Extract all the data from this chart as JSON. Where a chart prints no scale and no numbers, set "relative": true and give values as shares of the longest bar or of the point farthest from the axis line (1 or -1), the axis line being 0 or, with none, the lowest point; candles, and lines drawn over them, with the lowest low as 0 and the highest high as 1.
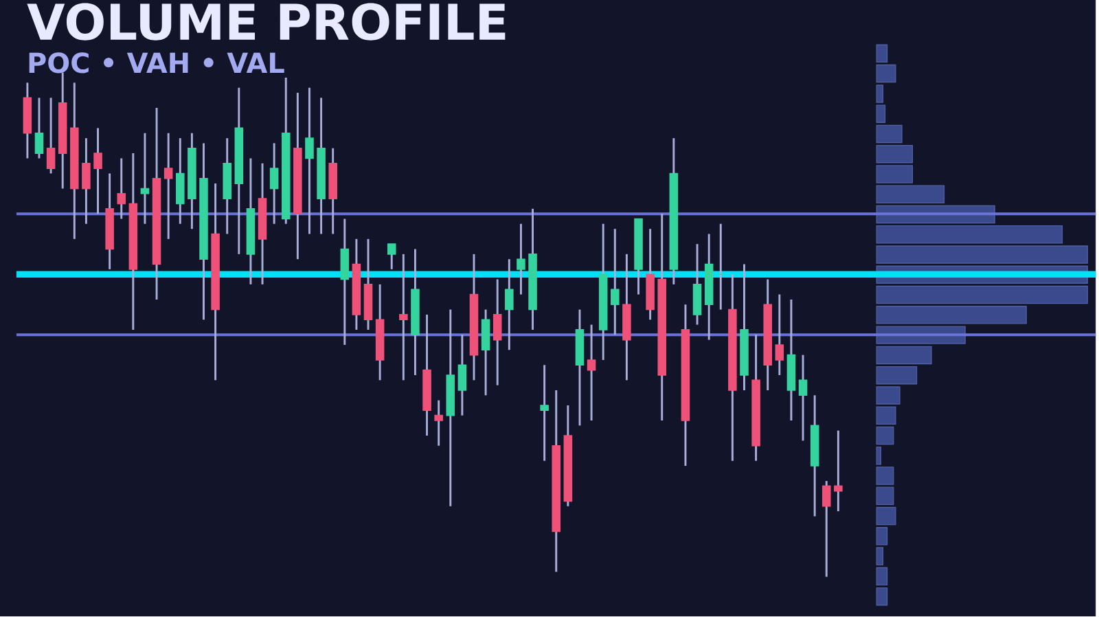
{
  "chart_data": [
    {
      "type": "candlestick",
      "title": "VOLUME PROFILE",
      "subtitle": "POC • VAH • VAL",
      "relative": true,
      "categories": [
        null,
        null,
        null,
        null,
        null,
        null,
        null,
        null,
        null,
        null,
        null,
        null,
        null,
        null,
        null,
        null,
        null,
        null,
        null,
        null,
        null,
        null,
        null,
        null,
        null,
        null,
        null,
        null,
        null,
        null,
        null,
        null,
        null,
        null,
        null,
        null,
        null,
        null,
        null,
        null,
        null,
        null,
        null,
        null,
        null,
        null,
        null,
        null,
        null,
        null,
        null,
        null,
        null,
        null,
        null,
        null,
        null,
        null,
        null,
        null,
        null,
        null,
        null,
        null,
        null,
        null,
        null,
        null,
        null,
        null
      ],
      "ohlc": [
        [
          0.95,
          0.98,
          0.83,
          0.88
        ],
        [
          0.84,
          0.95,
          0.83,
          0.88
        ],
        [
          0.85,
          0.95,
          0.8,
          0.81
        ],
        [
          0.94,
          1.0,
          0.77,
          0.84
        ],
        [
          0.89,
          0.98,
          0.67,
          0.77
        ],
        [
          0.82,
          0.87,
          0.7,
          0.77
        ],
        [
          0.84,
          0.89,
          0.72,
          0.81
        ],
        [
          0.73,
          0.8,
          0.61,
          0.65
        ],
        [
          0.76,
          0.83,
          0.71,
          0.74
        ],
        [
          0.74,
          0.84,
          0.49,
          0.61
        ],
        [
          0.76,
          0.88,
          0.7,
          0.77
        ],
        [
          0.79,
          0.93,
          0.55,
          0.62
        ],
        [
          0.81,
          0.88,
          0.67,
          0.79
        ],
        [
          0.74,
          0.87,
          0.7,
          0.8
        ],
        [
          0.75,
          0.88,
          0.69,
          0.85
        ],
        [
          0.63,
          0.86,
          0.51,
          0.79
        ],
        [
          0.68,
          0.78,
          0.39,
          0.53
        ],
        [
          0.75,
          0.87,
          0.68,
          0.82
        ],
        [
          0.78,
          0.97,
          0.64,
          0.89
        ],
        [
          0.64,
          0.83,
          0.58,
          0.73
        ],
        [
          0.75,
          0.82,
          0.58,
          0.67
        ],
        [
          0.77,
          0.86,
          0.7,
          0.81
        ],
        [
          0.71,
          0.99,
          0.7,
          0.88
        ],
        [
          0.85,
          0.96,
          0.63,
          0.72
        ],
        [
          0.83,
          0.97,
          0.68,
          0.87
        ],
        [
          0.75,
          0.95,
          0.68,
          0.85
        ],
        [
          0.82,
          0.85,
          0.68,
          0.75
        ],
        [
          0.59,
          0.71,
          0.46,
          0.65
        ],
        [
          0.62,
          0.67,
          0.49,
          0.52
        ],
        [
          0.58,
          0.67,
          0.49,
          0.51
        ],
        [
          0.51,
          0.58,
          0.39,
          0.43
        ],
        [
          0.64,
          0.66,
          0.61,
          0.66
        ],
        [
          0.52,
          0.64,
          0.39,
          0.51
        ],
        [
          0.48,
          0.65,
          0.4,
          0.57
        ],
        [
          0.41,
          0.52,
          0.28,
          0.33
        ],
        [
          0.32,
          0.35,
          0.26,
          0.31
        ],
        [
          0.32,
          0.53,
          0.14,
          0.4
        ],
        [
          0.37,
          0.48,
          0.32,
          0.42
        ],
        [
          0.56,
          0.64,
          0.39,
          0.44
        ],
        [
          0.45,
          0.53,
          0.36,
          0.51
        ],
        [
          0.52,
          0.59,
          0.38,
          0.47
        ],
        [
          0.53,
          0.63,
          0.45,
          0.57
        ],
        [
          0.61,
          0.7,
          0.56,
          0.63
        ],
        [
          0.53,
          0.73,
          0.49,
          0.64
        ],
        [
          0.33,
          0.42,
          0.23,
          0.34
        ],
        [
          0.26,
          0.37,
          0.01,
          0.09
        ],
        [
          0.28,
          0.34,
          0.14,
          0.15
        ],
        [
          0.42,
          0.53,
          0.3,
          0.49
        ],
        [
          0.43,
          0.5,
          0.31,
          0.41
        ],
        [
          0.49,
          0.7,
          0.43,
          0.6
        ],
        [
          0.54,
          0.69,
          0.48,
          0.57
        ],
        [
          0.54,
          0.64,
          0.39,
          0.47
        ],
        [
          0.61,
          0.71,
          0.56,
          0.71
        ],
        [
          0.6,
          0.69,
          0.51,
          0.53
        ],
        [
          0.59,
          0.72,
          0.31,
          0.4
        ],
        [
          0.61,
          0.87,
          0.58,
          0.8
        ],
        [
          0.49,
          0.54,
          0.22,
          0.31
        ],
        [
          0.52,
          0.66,
          0.5,
          0.58
        ],
        [
          0.54,
          0.68,
          0.47,
          0.62
        ],
        [
          0.6,
          0.7,
          0.53,
          0.6
        ],
        [
          0.53,
          0.6,
          0.23,
          0.37
        ],
        [
          0.4,
          0.62,
          0.37,
          0.49
        ],
        [
          0.39,
          0.48,
          0.23,
          0.26
        ],
        [
          0.54,
          0.59,
          0.37,
          0.42
        ],
        [
          0.46,
          0.56,
          0.4,
          0.43
        ],
        [
          0.37,
          0.55,
          0.31,
          0.44
        ],
        [
          0.36,
          0.44,
          0.27,
          0.39
        ],
        [
          0.22,
          0.36,
          0.12,
          0.3
        ],
        [
          0.18,
          0.19,
          0.0,
          0.14
        ],
        [
          0.18,
          0.29,
          0.13,
          0.17
        ]
      ],
      "ref_lines": [
        {
          "axis": "y",
          "value": 0.6,
          "color": "#00e0f5"
        },
        {
          "axis": "y",
          "value": 0.72,
          "color": "#6a74d8"
        },
        {
          "axis": "y",
          "value": 0.48,
          "color": "#6a74d8"
        }
      ]
    },
    {
      "type": "bar",
      "orientation": "horizontal",
      "relative": true,
      "color": "#3b4a8c",
      "categories": [
        null,
        null,
        null,
        null,
        null,
        null,
        null,
        null,
        null,
        null,
        null,
        null,
        null,
        null,
        null,
        null,
        null,
        null,
        null,
        null,
        null,
        null,
        null,
        null,
        null,
        null,
        null,
        null
      ],
      "values": [
        0.05,
        0.09,
        0.03,
        0.04,
        0.12,
        0.17,
        0.17,
        0.32,
        0.56,
        0.88,
        1,
        1,
        1,
        0.71,
        0.42,
        0.26,
        0.19,
        0.11,
        0.09,
        0.08,
        0.02,
        0.08,
        0.08,
        0.09,
        0.05,
        0.03,
        0.05,
        0.05
      ]
    }
  ]
}
